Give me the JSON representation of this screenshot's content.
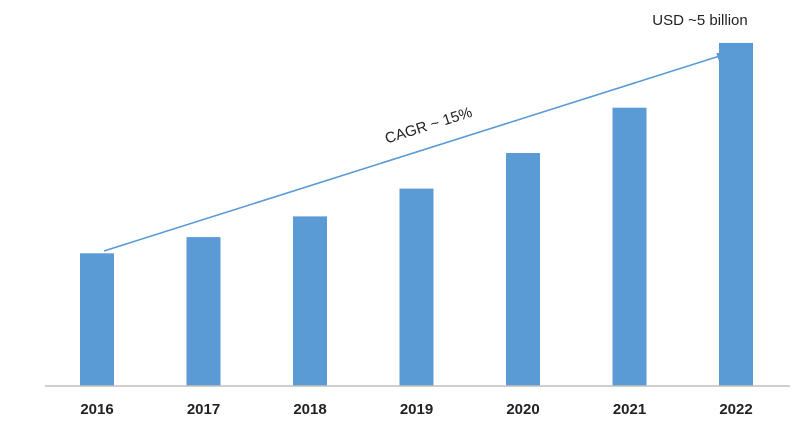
{
  "chart_data": {
    "type": "bar",
    "categories": [
      "2016",
      "2017",
      "2018",
      "2019",
      "2020",
      "2021",
      "2022"
    ],
    "values": [
      2.05,
      2.3,
      2.62,
      3.05,
      3.6,
      4.3,
      5.3
    ],
    "ylim": [
      0,
      5.5
    ],
    "grid": false,
    "legend": "none",
    "colors": {
      "bar": "#5b9bd5",
      "arrow": "#5b9bd5",
      "axis": "#bfbfbf",
      "text": "#222222"
    },
    "annotations": {
      "cagr_label": "CAGR ~ 15%",
      "end_value_label": "USD ~5 billion"
    }
  }
}
